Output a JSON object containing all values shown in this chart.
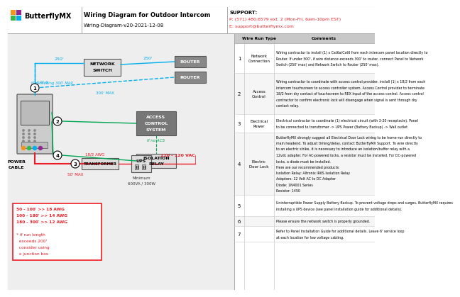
{
  "title": "Wiring Diagram for Outdoor Intercom",
  "subtitle": "Wiring-Diagram-v20-2021-12-08",
  "support_label": "SUPPORT:",
  "support_phone": "P: (571) 480.6579 ext. 2 (Mon-Fri, 6am-10pm EST)",
  "support_email": "E: support@butterflymx.com",
  "bg_color": "#ffffff",
  "cyan_color": "#00aeef",
  "green_color": "#00a651",
  "red_color": "#ed1c24",
  "table_rows": [
    {
      "num": "1",
      "type": "Network\nConnection",
      "comment": "Wiring contractor to install (1) x Cat6a/Cat6 from each intercom panel location directly to\nRouter. If under 300', if wire distance exceeds 300' to router, connect Panel to Network\nSwitch (250' max) and Network Switch to Router (250' max)."
    },
    {
      "num": "2",
      "type": "Access\nControl",
      "comment": "Wiring contractor to coordinate with access control provider, install (1) x 18/2 from each\nintercom touchscreen to access controller system. Access Control provider to terminate\n18/2 from dry contact of touchscreen to REX Input of the access control. Access control\ncontractor to confirm electronic lock will disengage when signal is sent through dry\ncontact relay."
    },
    {
      "num": "3",
      "type": "Electrical\nPower",
      "comment": "Electrical contractor to coordinate (1) electrical circuit (with 3-20 receptacle). Panel\nto be connected to transformer -> UPS Power (Battery Backup) -> Wall outlet"
    },
    {
      "num": "4",
      "type": "Electric\nDoor Lock",
      "comment": "ButterflyMX strongly suggest all Electrical Door Lock wiring to be home-run directly to\nmain headend. To adjust timing/delay, contact ButterflyMX Support. To wire directly\nto an electric strike, it is necessary to introduce an isolation/buffer relay with a\n12vdc adapter. For AC-powered locks, a resistor must be installed. For DC-powered\nlocks, a diode must be installed.\nHere are our recommended products:\nIsolation Relay: Altronix IR6S Isolation Relay\nAdapters: 12 Volt AC to DC Adapter\nDiode: 1N4001 Series\nResistor: 1450"
    },
    {
      "num": "5",
      "type": "",
      "comment": "Uninterruptible Power Supply Battery Backup. To prevent voltage drops and surges, ButterflyMX requires\ninstalling a UPS device (see panel installation guide for additional details)."
    },
    {
      "num": "6",
      "type": "",
      "comment": "Please ensure the network switch is properly grounded."
    },
    {
      "num": "7",
      "type": "",
      "comment": "Refer to Panel Installation Guide for additional details. Leave 6' service loop\nat each location for low voltage cabling."
    }
  ]
}
